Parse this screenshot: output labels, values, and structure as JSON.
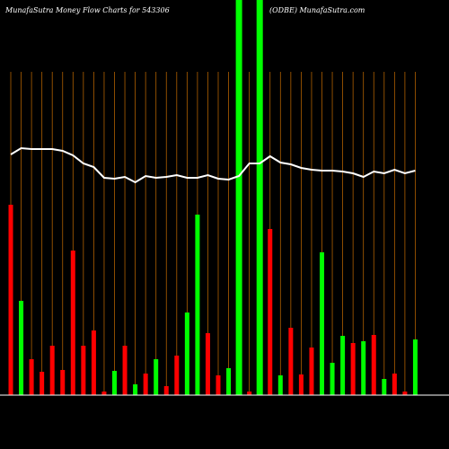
{
  "chart_data": {
    "type": "bar",
    "title": "MunafaSutra  Money Flow  Charts for 543306",
    "subtitle": "(ODBE)  MunafaSutra.com",
    "ylim": [
      0,
      440
    ],
    "series": [
      {
        "name": "Money Flow",
        "colors": [
          "#ff0000",
          "#00ff00"
        ],
        "up": [
          false,
          true,
          false,
          false,
          false,
          false,
          false,
          false,
          false,
          false,
          true,
          false,
          true,
          false,
          true,
          false,
          false,
          true,
          true,
          false,
          false,
          true,
          true,
          false,
          true,
          false,
          true,
          false,
          false,
          false,
          true,
          true,
          true,
          false,
          true,
          false,
          true,
          false,
          false,
          true
        ],
        "values": [
          212,
          105,
          40,
          26,
          55,
          28,
          161,
          55,
          72,
          4,
          27,
          55,
          12,
          24,
          40,
          10,
          44,
          92,
          201,
          69,
          22,
          30,
          440,
          4,
          440,
          185,
          22,
          75,
          23,
          53,
          159,
          36,
          66,
          58,
          60,
          67,
          18,
          24,
          4,
          62
        ]
      },
      {
        "name": "Price",
        "color": "#ffffff",
        "values": [
          268,
          275,
          274,
          274,
          274,
          272,
          267,
          258,
          254,
          242,
          241,
          243,
          237,
          244,
          242,
          243,
          245,
          242,
          242,
          245,
          241,
          240,
          244,
          258,
          258,
          266,
          259,
          257,
          253,
          251,
          250,
          250,
          249,
          247,
          243,
          249,
          247,
          251,
          247,
          250
        ]
      }
    ]
  }
}
